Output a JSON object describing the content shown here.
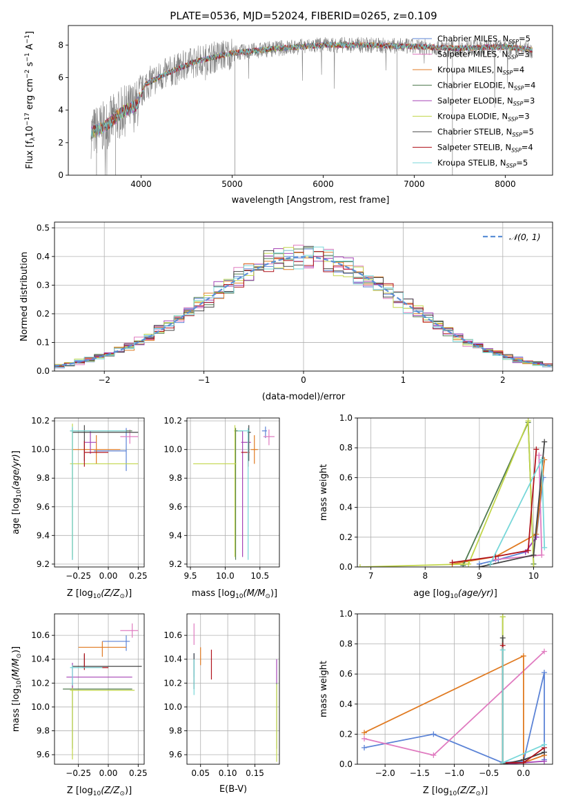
{
  "title": "PLATE=0536, MJD=52024, FIBERID=0265, z=0.109",
  "colors": {
    "Chabrier MILES": "#5b83d6",
    "Salpeter MILES": "#e07bc0",
    "Kroupa MILES": "#e07a21",
    "Chabrier ELODIE": "#4f7a4f",
    "Salpeter ELODIE": "#a442b5",
    "Kroupa ELODIE": "#c2d64a",
    "Chabrier STELIB": "#444444",
    "Salpeter STELIB": "#b0121b",
    "Kroupa STELIB": "#77d7d9",
    "data": "#808080",
    "gauss": "#5b8fd6",
    "grid": "#b0b0b0"
  },
  "chart_data": [
    {
      "id": "spectrum",
      "type": "line",
      "xlabel": "wavelength [Angstrom, rest frame]",
      "ylabel": "Flux [f",
      "xlim": [
        3200,
        8520
      ],
      "ylim": [
        0,
        9.2
      ],
      "xticks": [
        4000,
        5000,
        6000,
        7000,
        8000
      ],
      "yticks": [
        0,
        2,
        4,
        6,
        8
      ],
      "grid": false,
      "legend_position": "upper-right",
      "legend": [
        {
          "name": "Chabrier MILES",
          "nssp": "5"
        },
        {
          "name": "Salpeter MILES",
          "nssp": "3"
        },
        {
          "name": "Kroupa MILES",
          "nssp": "4"
        },
        {
          "name": "Chabrier ELODIE",
          "nssp": "4"
        },
        {
          "name": "Salpeter ELODIE",
          "nssp": "3"
        },
        {
          "name": "Kroupa ELODIE",
          "nssp": "3"
        },
        {
          "name": "Chabrier STELIB",
          "nssp": "5"
        },
        {
          "name": "Salpeter STELIB",
          "nssp": "4"
        },
        {
          "name": "Kroupa STELIB",
          "nssp": "5"
        }
      ],
      "continuum": [
        [
          3450,
          2.6
        ],
        [
          3600,
          3.0
        ],
        [
          3800,
          3.9
        ],
        [
          3950,
          4.3
        ],
        [
          4050,
          5.6
        ],
        [
          4300,
          6.3
        ],
        [
          4600,
          7.0
        ],
        [
          5000,
          7.5
        ],
        [
          5500,
          7.8
        ],
        [
          6000,
          8.0
        ],
        [
          6500,
          8.0
        ],
        [
          7000,
          7.9
        ],
        [
          7500,
          7.8
        ],
        [
          8000,
          7.9
        ],
        [
          8300,
          7.7
        ]
      ]
    },
    {
      "id": "residuals",
      "type": "histogram",
      "xlabel": "(data-model)/error",
      "ylabel": "Normed distribution",
      "xlim": [
        -2.5,
        2.5
      ],
      "ylim": [
        0,
        0.52
      ],
      "xticks": [
        -2,
        -1,
        0,
        1,
        2
      ],
      "yticks": [
        0.0,
        0.1,
        0.2,
        0.3,
        0.4,
        0.5
      ],
      "grid": true,
      "legend_position": "upper-right",
      "legend_label": "𝒩(0, 1)",
      "bin_width": 0.1
    },
    {
      "id": "age-vs-Z",
      "type": "errorbar",
      "xlabel": "Z [log",
      "ylabel": "age [log",
      "xlim": [
        -0.45,
        0.3
      ],
      "ylim": [
        9.18,
        10.22
      ],
      "xticks": [
        -0.25,
        0.0,
        0.25
      ],
      "yticks": [
        9.2,
        9.4,
        9.6,
        9.8,
        10.0,
        10.2
      ],
      "points": [
        {
          "series": "Chabrier MILES",
          "x": 0.15,
          "y": 9.99,
          "xerr": [
            0.27,
            0.0
          ],
          "yerr": [
            0.14,
            0.16
          ]
        },
        {
          "series": "Salpeter MILES",
          "x": 0.18,
          "y": 10.09,
          "xerr": [
            0.08,
            0.07
          ],
          "yerr": [
            0.05,
            0.05
          ]
        },
        {
          "series": "Kroupa MILES",
          "x": -0.1,
          "y": 10.0,
          "xerr": [
            0.2,
            0.2
          ],
          "yerr": [
            0.1,
            0.1
          ]
        },
        {
          "series": "Chabrier ELODIE",
          "x": -0.3,
          "y": 10.13,
          "xerr": [
            0.02,
            0.5
          ],
          "yerr": [
            0.9,
            0.02
          ]
        },
        {
          "series": "Salpeter ELODIE",
          "x": -0.15,
          "y": 10.05,
          "xerr": [
            0.05,
            0.05
          ],
          "yerr": [
            0.08,
            0.08
          ]
        },
        {
          "series": "Kroupa ELODIE",
          "x": -0.3,
          "y": 9.9,
          "xerr": [
            0.02,
            0.55
          ],
          "yerr": [
            0.65,
            0.28
          ]
        },
        {
          "series": "Chabrier STELIB",
          "x": -0.2,
          "y": 10.12,
          "xerr": [
            0.1,
            0.45
          ],
          "yerr": [
            0.2,
            0.05
          ]
        },
        {
          "series": "Salpeter STELIB",
          "x": -0.2,
          "y": 9.98,
          "xerr": [
            0.0,
            0.2
          ],
          "yerr": [
            0.1,
            0.08
          ]
        },
        {
          "series": "Kroupa STELIB",
          "x": -0.3,
          "y": 10.13,
          "xerr": [
            0.02,
            0.45
          ],
          "yerr": [
            0.9,
            0.03
          ]
        }
      ]
    },
    {
      "id": "age-vs-mass",
      "type": "errorbar",
      "xlabel": "mass [log",
      "ylabel": "",
      "xlim": [
        9.45,
        10.78
      ],
      "ylim": [
        9.18,
        10.22
      ],
      "xticks": [
        9.5,
        10.0,
        10.5
      ],
      "yticks": [
        9.2,
        9.4,
        9.6,
        9.8,
        10.0,
        10.2
      ],
      "points": [
        {
          "series": "Chabrier MILES",
          "x": 10.58,
          "y": 10.13,
          "xerr": [
            0.05,
            0.02
          ],
          "yerr": [
            0.05,
            0.03
          ]
        },
        {
          "series": "Salpeter MILES",
          "x": 10.63,
          "y": 10.09,
          "xerr": [
            0.08,
            0.08
          ],
          "yerr": [
            0.06,
            0.05
          ]
        },
        {
          "series": "Kroupa MILES",
          "x": 10.42,
          "y": 10.0,
          "xerr": [
            0.05,
            0.05
          ],
          "yerr": [
            0.1,
            0.1
          ]
        },
        {
          "series": "Chabrier ELODIE",
          "x": 10.15,
          "y": 10.13,
          "xerr": [
            0.02,
            0.1
          ],
          "yerr": [
            0.9,
            0.02
          ]
        },
        {
          "series": "Salpeter ELODIE",
          "x": 10.25,
          "y": 10.05,
          "xerr": [
            0.02,
            0.12
          ],
          "yerr": [
            0.8,
            0.08
          ]
        },
        {
          "series": "Kroupa ELODIE",
          "x": 10.14,
          "y": 9.9,
          "xerr": [
            0.6,
            0.02
          ],
          "yerr": [
            0.65,
            0.27
          ]
        },
        {
          "series": "Chabrier STELIB",
          "x": 10.34,
          "y": 10.12,
          "xerr": [
            0.02,
            0.03
          ],
          "yerr": [
            0.2,
            0.05
          ]
        },
        {
          "series": "Salpeter STELIB",
          "x": 10.33,
          "y": 9.98,
          "xerr": [
            0.1,
            0.02
          ],
          "yerr": [
            0.1,
            0.08
          ]
        },
        {
          "series": "Kroupa STELIB",
          "x": 10.33,
          "y": 10.13,
          "xerr": [
            0.15,
            0.02
          ],
          "yerr": [
            0.9,
            0.02
          ]
        }
      ]
    },
    {
      "id": "weight-vs-age",
      "type": "line",
      "xlabel": "age [log",
      "ylabel": "mass weight",
      "xlim": [
        6.75,
        10.35
      ],
      "ylim": [
        0,
        1.0
      ],
      "xticks": [
        7,
        8,
        9,
        10
      ],
      "yticks": [
        0.0,
        0.2,
        0.4,
        0.6,
        0.8,
        1.0
      ],
      "grid": true,
      "series": [
        {
          "name": "Chabrier MILES",
          "points": [
            [
              9.0,
              0.02
            ],
            [
              9.35,
              0.05
            ],
            [
              9.85,
              0.1
            ],
            [
              10.05,
              0.2
            ],
            [
              10.18,
              0.6
            ]
          ]
        },
        {
          "name": "Salpeter MILES",
          "points": [
            [
              9.3,
              0.05
            ],
            [
              10.15,
              0.08
            ],
            [
              10.1,
              0.75
            ]
          ]
        },
        {
          "name": "Kroupa MILES",
          "points": [
            [
              8.5,
              0.02
            ],
            [
              9.3,
              0.07
            ],
            [
              10.05,
              0.22
            ],
            [
              10.2,
              0.72
            ]
          ]
        },
        {
          "name": "Chabrier ELODIE",
          "points": [
            [
              8.7,
              0.01
            ],
            [
              9.9,
              0.97
            ],
            [
              10.0,
              0.02
            ]
          ]
        },
        {
          "name": "Salpeter ELODIE",
          "points": [
            [
              9.85,
              0.1
            ],
            [
              10.05,
              0.2
            ]
          ]
        },
        {
          "name": "Kroupa ELODIE",
          "points": [
            [
              6.8,
              0.0
            ],
            [
              8.8,
              0.02
            ],
            [
              9.9,
              0.98
            ],
            [
              10.0,
              0.0
            ]
          ]
        },
        {
          "name": "Chabrier STELIB",
          "points": [
            [
              9.0,
              0.0
            ],
            [
              10.0,
              0.08
            ],
            [
              10.2,
              0.84
            ]
          ]
        },
        {
          "name": "Salpeter STELIB",
          "points": [
            [
              8.5,
              0.03
            ],
            [
              9.3,
              0.07
            ],
            [
              9.9,
              0.11
            ],
            [
              10.05,
              0.79
            ]
          ]
        },
        {
          "name": "Kroupa STELIB",
          "points": [
            [
              9.2,
              0.02
            ],
            [
              10.15,
              0.72
            ],
            [
              10.2,
              0.13
            ]
          ]
        }
      ]
    },
    {
      "id": "mass-vs-Z",
      "type": "errorbar",
      "xlabel": "Z [log",
      "ylabel": "mass [log",
      "xlim": [
        -0.45,
        0.3
      ],
      "ylim": [
        9.52,
        10.78
      ],
      "xticks": [
        -0.25,
        0.0,
        0.25
      ],
      "yticks": [
        9.6,
        9.8,
        10.0,
        10.2,
        10.4,
        10.6
      ],
      "points": [
        {
          "series": "Chabrier MILES",
          "x": 0.15,
          "y": 10.55,
          "xerr": [
            0.2,
            0.03
          ],
          "yerr": [
            0.08,
            0.05
          ]
        },
        {
          "series": "Salpeter MILES",
          "x": 0.2,
          "y": 10.64,
          "xerr": [
            0.1,
            0.05
          ],
          "yerr": [
            0.06,
            0.06
          ]
        },
        {
          "series": "Kroupa MILES",
          "x": -0.05,
          "y": 10.5,
          "xerr": [
            0.2,
            0.2
          ],
          "yerr": [
            0.08,
            0.05
          ]
        },
        {
          "series": "Chabrier ELODIE",
          "x": -0.3,
          "y": 10.15,
          "xerr": [
            0.08,
            0.5
          ],
          "yerr": [
            0.5,
            0.05
          ]
        },
        {
          "series": "Salpeter ELODIE",
          "x": -0.3,
          "y": 10.25,
          "xerr": [
            0.05,
            0.5
          ],
          "yerr": [
            0.1,
            0.12
          ]
        },
        {
          "series": "Kroupa ELODIE",
          "x": -0.3,
          "y": 10.14,
          "xerr": [
            0.02,
            0.52
          ],
          "yerr": [
            0.58,
            0.02
          ]
        },
        {
          "series": "Chabrier STELIB",
          "x": -0.2,
          "y": 10.34,
          "xerr": [
            0.1,
            0.48
          ],
          "yerr": [
            0.02,
            0.1
          ]
        },
        {
          "series": "Salpeter STELIB",
          "x": -0.2,
          "y": 10.33,
          "xerr": [
            0.02,
            0.2
          ],
          "yerr": [
            0.02,
            0.12
          ]
        },
        {
          "series": "Kroupa STELIB",
          "x": -0.3,
          "y": 10.33,
          "xerr": [
            0.02,
            0.25
          ],
          "yerr": [
            0.15,
            0.02
          ]
        }
      ]
    },
    {
      "id": "mass-vs-ebv",
      "type": "errorbar",
      "xlabel": "E(B-V)",
      "ylabel": "",
      "xlim": [
        0.025,
        0.195
      ],
      "ylim": [
        9.52,
        10.78
      ],
      "xticks": [
        0.05,
        0.1,
        0.15
      ],
      "yticks": [
        9.6,
        9.8,
        10.0,
        10.2,
        10.4,
        10.6
      ],
      "points": [
        {
          "series": "Chabrier MILES",
          "x": 0.038,
          "y": 10.35,
          "xerr": [
            0,
            0
          ],
          "yerr": [
            0.1,
            0.1
          ]
        },
        {
          "series": "Salpeter MILES",
          "x": 0.038,
          "y": 10.6,
          "xerr": [
            0,
            0
          ],
          "yerr": [
            0.08,
            0.1
          ]
        },
        {
          "series": "Kroupa MILES",
          "x": 0.05,
          "y": 10.45,
          "xerr": [
            0,
            0
          ],
          "yerr": [
            0.1,
            0.05
          ]
        },
        {
          "series": "Chabrier ELODIE",
          "x": 0.19,
          "y": 10.15,
          "xerr": [
            0,
            0
          ],
          "yerr": [
            0.5,
            0.05
          ]
        },
        {
          "series": "Salpeter ELODIE",
          "x": 0.19,
          "y": 10.3,
          "xerr": [
            0,
            0
          ],
          "yerr": [
            0.1,
            0.1
          ]
        },
        {
          "series": "Kroupa ELODIE",
          "x": 0.19,
          "y": 10.14,
          "xerr": [
            0,
            0
          ],
          "yerr": [
            0.6,
            0.05
          ]
        },
        {
          "series": "Chabrier STELIB",
          "x": 0.038,
          "y": 10.35,
          "xerr": [
            0,
            0
          ],
          "yerr": [
            0.2,
            0.1
          ]
        },
        {
          "series": "Salpeter STELIB",
          "x": 0.07,
          "y": 10.35,
          "xerr": [
            0,
            0
          ],
          "yerr": [
            0.12,
            0.13
          ]
        },
        {
          "series": "Kroupa STELIB",
          "x": 0.038,
          "y": 10.2,
          "xerr": [
            0,
            0
          ],
          "yerr": [
            0.1,
            0.2
          ]
        }
      ]
    },
    {
      "id": "weight-vs-Z",
      "type": "line",
      "xlabel": "Z [log",
      "ylabel": "mass weight",
      "xlim": [
        -2.4,
        0.42
      ],
      "ylim": [
        0,
        1.0
      ],
      "xticks": [
        -2.0,
        -1.5,
        -1.0,
        -0.5,
        0.0
      ],
      "yticks": [
        0.0,
        0.2,
        0.4,
        0.6,
        0.8,
        1.0
      ],
      "grid": true,
      "series": [
        {
          "name": "Chabrier MILES",
          "points": [
            [
              -2.3,
              0.11
            ],
            [
              -1.3,
              0.2
            ],
            [
              -0.3,
              0.01
            ],
            [
              0.0,
              0.02
            ],
            [
              0.3,
              0.61
            ],
            [
              0.3,
              0.03
            ]
          ]
        },
        {
          "name": "Salpeter MILES",
          "points": [
            [
              -2.3,
              0.17
            ],
            [
              -1.3,
              0.06
            ],
            [
              0.3,
              0.75
            ]
          ]
        },
        {
          "name": "Kroupa MILES",
          "points": [
            [
              -2.3,
              0.21
            ],
            [
              0.0,
              0.72
            ],
            [
              0.0,
              0.01
            ],
            [
              0.3,
              0.06
            ]
          ]
        },
        {
          "name": "Chabrier ELODIE",
          "points": [
            [
              -0.3,
              0.98
            ],
            [
              -0.3,
              0.0
            ]
          ]
        },
        {
          "name": "Salpeter ELODIE",
          "points": [
            [
              -0.3,
              0.0
            ],
            [
              0.3,
              0.02
            ]
          ]
        },
        {
          "name": "Kroupa ELODIE",
          "points": [
            [
              -0.3,
              0.98
            ],
            [
              -0.3,
              0.0
            ]
          ]
        },
        {
          "name": "Chabrier STELIB",
          "points": [
            [
              -0.3,
              0.84
            ],
            [
              -0.3,
              0.0
            ],
            [
              0.0,
              0.03
            ],
            [
              0.3,
              0.08
            ]
          ]
        },
        {
          "name": "Salpeter STELIB",
          "points": [
            [
              -0.3,
              0.79
            ],
            [
              -0.3,
              0.01
            ],
            [
              0.0,
              0.01
            ],
            [
              0.3,
              0.11
            ]
          ]
        },
        {
          "name": "Kroupa STELIB",
          "points": [
            [
              -0.3,
              0.76
            ],
            [
              -0.3,
              0.01
            ],
            [
              0.3,
              0.13
            ]
          ]
        }
      ]
    }
  ]
}
